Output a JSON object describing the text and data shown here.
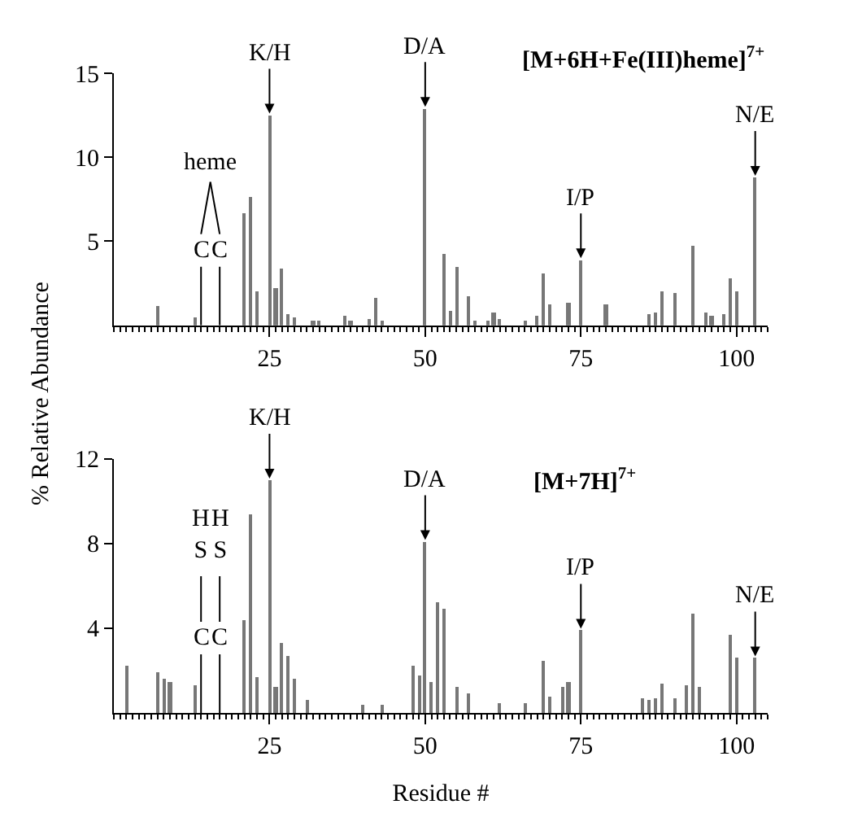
{
  "chart_data": [
    {
      "type": "bar",
      "title": "[M+6H+Fe(III)heme]$^{7+}$",
      "ylabel": "% Relative Abundance",
      "color": "#777777",
      "x": [
        7,
        13,
        21,
        22,
        23,
        25,
        26,
        27,
        28,
        29,
        32,
        33,
        37,
        38,
        41,
        42,
        43,
        50,
        53,
        54,
        55,
        57,
        58,
        60,
        61,
        62,
        66,
        68,
        69,
        70,
        73,
        75,
        79,
        86,
        87,
        88,
        90,
        93,
        95,
        96,
        98,
        99,
        100,
        103
      ],
      "values": [
        1.1,
        0.5,
        6.7,
        7.6,
        2.0,
        12.5,
        2.2,
        3.4,
        0.7,
        0.5,
        0.3,
        0.3,
        0.6,
        0.3,
        0.4,
        1.6,
        0.3,
        12.9,
        4.2,
        0.9,
        3.5,
        1.7,
        0.3,
        0.3,
        0.8,
        0.4,
        0.3,
        0.6,
        3.1,
        1.2,
        1.3,
        3.9,
        1.2,
        0.7,
        0.8,
        2.0,
        1.9,
        4.7,
        0.8,
        0.6,
        0.7,
        2.8,
        2.0,
        8.8
      ],
      "xlim": [
        0,
        105
      ],
      "xticks": [
        25,
        50,
        75,
        100
      ],
      "ylim": [
        0,
        15
      ],
      "yticks": [
        5,
        10,
        15
      ],
      "ref_lines": [
        {
          "axis": "x",
          "value": 14,
          "label": "C"
        },
        {
          "axis": "x",
          "value": 17,
          "label": "C"
        }
      ],
      "annotations": [
        {
          "text": "K/H",
          "x": 25,
          "y": 12.5
        },
        {
          "text": "D/A",
          "x": 50,
          "y": 12.9
        },
        {
          "text": "I/P",
          "x": 75,
          "y": 3.9
        },
        {
          "text": "N/E",
          "x": 103,
          "y": 8.8
        },
        "heme"
      ]
    },
    {
      "type": "bar",
      "title": "[M+7H]$^{7+}$",
      "xlabel": "Residue #",
      "color": "#777777",
      "x": [
        2,
        7,
        8,
        9,
        13,
        21,
        22,
        23,
        25,
        26,
        27,
        28,
        29,
        31,
        40,
        43,
        48,
        49,
        50,
        51,
        52,
        53,
        55,
        57,
        62,
        66,
        69,
        70,
        72,
        73,
        75,
        85,
        86,
        87,
        88,
        90,
        92,
        93,
        94,
        99,
        100,
        103
      ],
      "values": [
        2.2,
        1.9,
        1.6,
        1.5,
        1.3,
        4.4,
        9.4,
        1.7,
        11.0,
        1.2,
        3.3,
        2.7,
        1.6,
        0.6,
        0.4,
        0.4,
        2.2,
        1.8,
        8.1,
        1.5,
        5.2,
        4.9,
        1.2,
        0.9,
        0.5,
        0.5,
        2.5,
        0.8,
        1.2,
        1.5,
        3.9,
        0.7,
        0.6,
        0.7,
        1.4,
        0.7,
        1.3,
        4.7,
        1.2,
        3.7,
        2.6,
        2.6
      ],
      "xlim": [
        0,
        105
      ],
      "xticks": [
        25,
        50,
        75,
        100
      ],
      "ylim": [
        0,
        12
      ],
      "yticks": [
        4,
        8,
        12
      ],
      "ref_lines": [
        {
          "axis": "x",
          "value": 14,
          "label": "C"
        },
        {
          "axis": "x",
          "value": 17,
          "label": "C"
        }
      ],
      "annotations": [
        {
          "text": "K/H",
          "x": 25,
          "y": 11.0
        },
        {
          "text": "D/A",
          "x": 50,
          "y": 8.1
        },
        {
          "text": "I/P",
          "x": 75,
          "y": 3.9
        },
        {
          "text": "N/E",
          "x": 103,
          "y": 2.6
        },
        "H\nS",
        "H\nS"
      ]
    }
  ]
}
